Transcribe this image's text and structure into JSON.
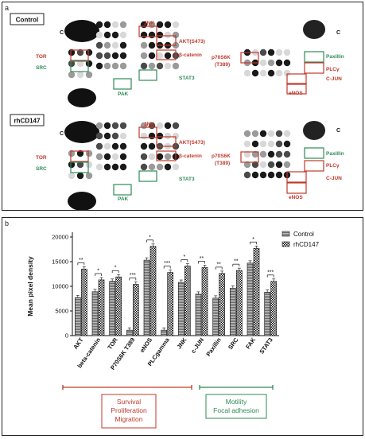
{
  "panel_a": {
    "letter": "a",
    "control_label": "Control",
    "treatment_label": "rhCD147",
    "c_marker": "C",
    "red_color": "#c0392b",
    "green_color": "#2e8b57",
    "blot1": {
      "labels": [
        {
          "key": "jnk",
          "text": "JNK",
          "color": "red"
        },
        {
          "key": "akt",
          "text": "AKT(S473)",
          "color": "red"
        },
        {
          "key": "bcat",
          "text": "β-catenin",
          "color": "red"
        },
        {
          "key": "stat3",
          "text": "STAT3",
          "color": "green"
        },
        {
          "key": "tor",
          "text": "TOR",
          "color": "red"
        },
        {
          "key": "src",
          "text": "SRC",
          "color": "green"
        },
        {
          "key": "fak",
          "text": "PAK",
          "color": "green"
        },
        {
          "key": "p70",
          "text": "p70S6K",
          "color": "red"
        },
        {
          "key": "p70b",
          "text": "(T389)",
          "color": "red"
        },
        {
          "key": "pax",
          "text": "Paxillin",
          "color": "green"
        },
        {
          "key": "plc",
          "text": "PLCγ",
          "color": "red"
        },
        {
          "key": "cjun",
          "text": "C-JUN",
          "color": "red"
        },
        {
          "key": "enos",
          "text": "eNOS",
          "color": "red"
        }
      ]
    },
    "blot2": {
      "labels": [
        {
          "key": "jnk",
          "text": "JNK",
          "color": "red"
        },
        {
          "key": "akt",
          "text": "AKT(S473)",
          "color": "red"
        },
        {
          "key": "bcat",
          "text": "β-catenin",
          "color": "red"
        },
        {
          "key": "stat3",
          "text": "STAT3",
          "color": "green"
        },
        {
          "key": "tor",
          "text": "TOR",
          "color": "red"
        },
        {
          "key": "src",
          "text": "SRC",
          "color": "green"
        },
        {
          "key": "fak",
          "text": "PAK",
          "color": "green"
        },
        {
          "key": "p70",
          "text": "p70S6K",
          "color": "red"
        },
        {
          "key": "p70b",
          "text": "(T389)",
          "color": "red"
        },
        {
          "key": "pax",
          "text": "Paxillin",
          "color": "green"
        },
        {
          "key": "plc",
          "text": "PLCγ",
          "color": "red"
        },
        {
          "key": "cjun",
          "text": "C-JUN",
          "color": "red"
        },
        {
          "key": "enos",
          "text": "eNOS",
          "color": "red"
        }
      ]
    }
  },
  "panel_b": {
    "letter": "b",
    "legend": [
      "Control",
      "rhCD147"
    ],
    "group_labels": {
      "survival": [
        "Survival",
        "Proliferation",
        "Migration"
      ],
      "motility": [
        "Motility",
        "Focal adhesion"
      ]
    },
    "survival_color": "#c0392b",
    "motility_color": "#2e8b57"
  },
  "chart_data": {
    "type": "bar",
    "ylabel": "Mean pixel density",
    "ylim": [
      0,
      20000
    ],
    "yticks": [
      0,
      5000,
      10000,
      15000,
      20000
    ],
    "categories": [
      "AKT",
      "beta-catenin",
      "TOR",
      "P70S6K T389",
      "eNOS",
      "PLCgamma",
      "JNK",
      "c-JUN",
      "Paxillin",
      "SRC",
      "FAK",
      "STAT3"
    ],
    "series": [
      {
        "name": "Control",
        "values": [
          7700,
          8900,
          11000,
          1100,
          15300,
          1100,
          10800,
          8400,
          7600,
          9600,
          14700,
          8800
        ]
      },
      {
        "name": "rhCD147",
        "values": [
          13500,
          11300,
          11900,
          10400,
          18100,
          12800,
          14100,
          13800,
          12600,
          13200,
          17700,
          11000
        ]
      }
    ],
    "significance": [
      "**",
      "*",
      "*",
      "***",
      "*",
      "***",
      "*",
      "**",
      "**",
      "**",
      "*",
      "***"
    ]
  }
}
